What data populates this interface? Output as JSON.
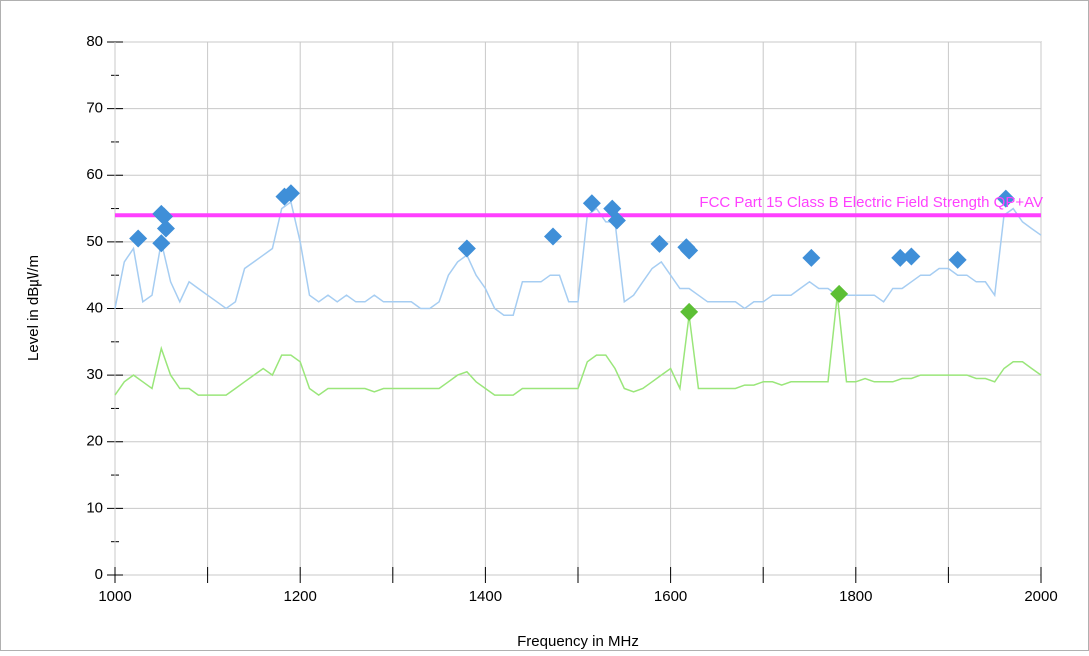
{
  "chart_data": {
    "type": "line",
    "x_label": "Frequency in MHz",
    "y_label": "Level in dB㎶/m",
    "xlim": [
      1000,
      2000
    ],
    "ylim": [
      0,
      80
    ],
    "xticks": [
      1000,
      1200,
      1400,
      1600,
      1800,
      2000
    ],
    "xminor": [
      1100,
      1300,
      1500,
      1700,
      1900
    ],
    "yticks": [
      0,
      10,
      20,
      30,
      40,
      50,
      60,
      70,
      80
    ],
    "yminor": [
      5,
      15,
      25,
      35,
      45,
      55,
      65,
      75
    ],
    "grid": true,
    "x": [
      1000,
      1010,
      1020,
      1030,
      1040,
      1050,
      1060,
      1070,
      1080,
      1090,
      1100,
      1110,
      1120,
      1130,
      1140,
      1150,
      1160,
      1170,
      1180,
      1190,
      1200,
      1210,
      1220,
      1230,
      1240,
      1250,
      1260,
      1270,
      1280,
      1290,
      1300,
      1310,
      1320,
      1330,
      1340,
      1350,
      1360,
      1370,
      1380,
      1390,
      1400,
      1410,
      1420,
      1430,
      1440,
      1450,
      1460,
      1470,
      1480,
      1490,
      1500,
      1510,
      1520,
      1530,
      1540,
      1550,
      1560,
      1570,
      1580,
      1590,
      1600,
      1610,
      1620,
      1630,
      1640,
      1650,
      1660,
      1670,
      1680,
      1690,
      1700,
      1710,
      1720,
      1730,
      1740,
      1750,
      1760,
      1770,
      1780,
      1790,
      1800,
      1810,
      1820,
      1830,
      1840,
      1850,
      1860,
      1870,
      1880,
      1890,
      1900,
      1910,
      1920,
      1930,
      1940,
      1950,
      1960,
      1970,
      1980,
      1990,
      2000
    ],
    "series": [
      {
        "color": "#a6cdf2",
        "values": [
          40,
          47,
          49,
          41,
          42,
          50,
          44,
          41,
          44,
          43,
          42,
          41,
          40,
          41,
          46,
          47,
          48,
          49,
          55,
          56,
          50,
          42,
          41,
          42,
          41,
          42,
          41,
          41,
          42,
          41,
          41,
          41,
          41,
          40,
          40,
          41,
          45,
          47,
          48,
          45,
          43,
          40,
          39,
          39,
          44,
          44,
          44,
          45,
          45,
          41,
          41,
          54,
          55,
          53,
          53,
          41,
          42,
          44,
          46,
          47,
          45,
          43,
          43,
          42,
          41,
          41,
          41,
          41,
          40,
          41,
          41,
          42,
          42,
          42,
          43,
          44,
          43,
          43,
          42,
          42,
          42,
          42,
          42,
          41,
          43,
          43,
          44,
          45,
          45,
          46,
          46,
          45,
          45,
          44,
          44,
          42,
          54,
          55,
          53,
          52,
          51
        ]
      },
      {
        "color": "#9ae67a",
        "values": [
          27,
          29,
          30,
          29,
          28,
          34,
          30,
          28,
          28,
          27,
          27,
          27,
          27,
          28,
          29,
          30,
          31,
          30,
          33,
          33,
          32,
          28,
          27,
          28,
          28,
          28,
          28,
          28,
          27.5,
          28,
          28,
          28,
          28,
          28,
          28,
          28,
          29,
          30,
          30.5,
          29,
          28,
          27,
          27,
          27,
          28,
          28,
          28,
          28,
          28,
          28,
          28,
          32,
          33,
          33,
          31,
          28,
          27.5,
          28,
          29,
          30,
          31,
          28,
          39,
          28,
          28,
          28,
          28,
          28,
          28.5,
          28.5,
          29,
          29,
          28.5,
          29,
          29,
          29,
          29,
          29,
          42,
          29,
          29,
          29.5,
          29,
          29,
          29,
          29.5,
          29.5,
          30,
          30,
          30,
          30,
          30,
          30,
          29.5,
          29.5,
          29,
          31,
          32,
          32,
          31,
          30
        ]
      }
    ],
    "markers": [
      {
        "color": "#3f8fd8",
        "x": [
          1025,
          1050,
          1053,
          1050,
          1055,
          1183,
          1190,
          1380,
          1473,
          1515,
          1537,
          1542,
          1588,
          1617,
          1620,
          1752,
          1848,
          1860,
          1910,
          1962
        ],
        "values": [
          50.5,
          54.2,
          53.8,
          49.8,
          52,
          56.8,
          57.3,
          49,
          50.8,
          55.8,
          55,
          53.2,
          49.7,
          49.2,
          48.7,
          47.6,
          47.6,
          47.8,
          47.3,
          56.5
        ]
      },
      {
        "color": "#5cbf35",
        "x": [
          1620,
          1782
        ],
        "values": [
          39.5,
          42.2
        ]
      }
    ],
    "limit": {
      "label": "FCC Part 15 Class B Electric Field Strength QP+AV",
      "value": 54,
      "color": "#ff40ff"
    }
  }
}
